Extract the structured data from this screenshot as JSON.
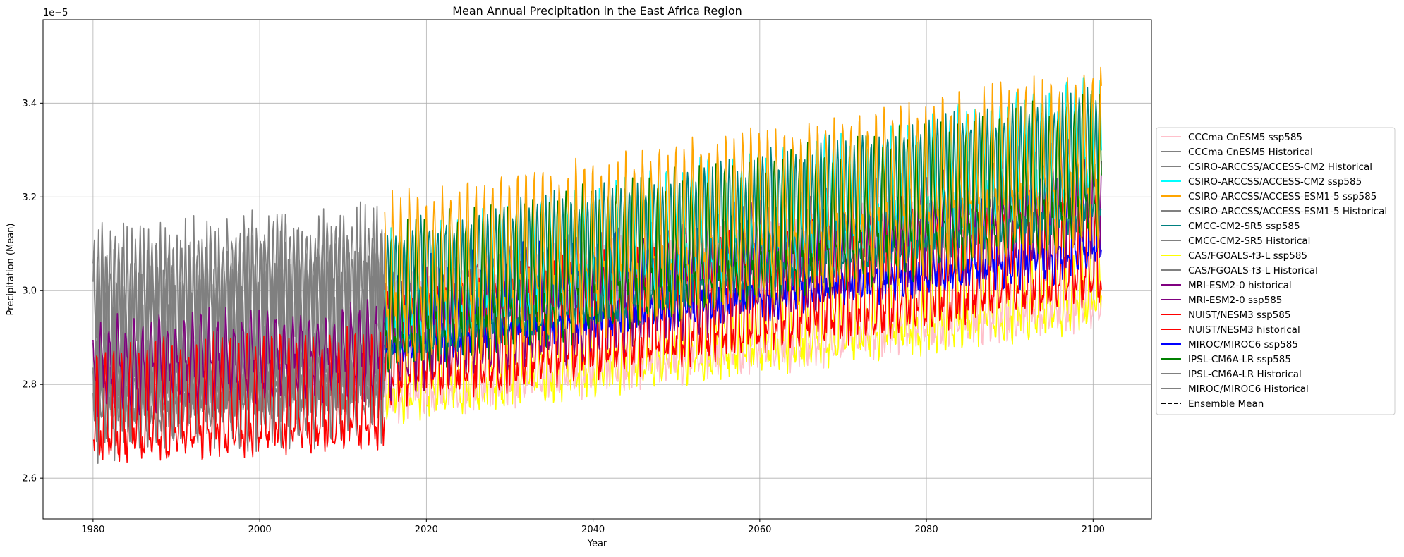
{
  "chart_data": {
    "type": "line",
    "title": "Mean Annual Precipitation in the East Africa Region",
    "xlabel": "Year",
    "ylabel": "Precipitation (Mean)",
    "y_offset_text": "1e−5",
    "xlim": [
      1974,
      2107
    ],
    "ylim": [
      2.513,
      3.578
    ],
    "x_ticks": [
      1980,
      2000,
      2020,
      2040,
      2060,
      2080,
      2100
    ],
    "x_tick_labels": [
      "1980",
      "2000",
      "2020",
      "2040",
      "2060",
      "2080",
      "2100"
    ],
    "y_ticks": [
      2.6,
      2.8,
      3.0,
      3.2,
      3.4
    ],
    "y_tick_labels": [
      "2.6",
      "2.8",
      "3.0",
      "3.2",
      "3.4"
    ],
    "grid": true,
    "legend_position": "right",
    "series": [
      {
        "name": "CCCma CnESM5 ssp585",
        "color": "#ffc0cb",
        "period": "future",
        "base_start": 2.84,
        "base_end": 3.04,
        "amp": 0.13,
        "noise": 0.03,
        "seed": 11
      },
      {
        "name": "CCCma CnESM5 Historical",
        "color": "#808080",
        "period": "hist",
        "base_start": 2.86,
        "base_end": 2.9,
        "amp": 0.14,
        "noise": 0.04,
        "seed": 12
      },
      {
        "name": "CSIRO-ARCCSS/ACCESS-CM2 Historical",
        "color": "#808080",
        "period": "hist",
        "base_start": 2.88,
        "base_end": 2.92,
        "amp": 0.16,
        "noise": 0.04,
        "seed": 13
      },
      {
        "name": "CSIRO-ARCCSS/ACCESS-CM2 ssp585",
        "color": "#00ffff",
        "period": "future",
        "base_start": 2.98,
        "base_end": 3.3,
        "amp": 0.1,
        "noise": 0.03,
        "seed": 14
      },
      {
        "name": "CSIRO-ARCCSS/ACCESS-ESM1-5 ssp585",
        "color": "#ffa500",
        "period": "future",
        "base_start": 3.0,
        "base_end": 3.27,
        "amp": 0.14,
        "noise": 0.03,
        "seed": 15
      },
      {
        "name": "CSIRO-ARCCSS/ACCESS-ESM1-5 Historical",
        "color": "#808080",
        "period": "hist",
        "base_start": 2.9,
        "base_end": 2.95,
        "amp": 0.16,
        "noise": 0.04,
        "seed": 16
      },
      {
        "name": "CMCC-CM2-SR5 ssp585",
        "color": "#008080",
        "period": "future",
        "base_start": 2.95,
        "base_end": 3.24,
        "amp": 0.12,
        "noise": 0.03,
        "seed": 17
      },
      {
        "name": "CMCC-CM2-SR5 Historical",
        "color": "#808080",
        "period": "hist",
        "base_start": 2.82,
        "base_end": 2.86,
        "amp": 0.12,
        "noise": 0.04,
        "seed": 18
      },
      {
        "name": "CAS/FGOALS-f3-L ssp585",
        "color": "#ffff00",
        "period": "future",
        "base_start": 2.8,
        "base_end": 3.0,
        "amp": 0.07,
        "noise": 0.03,
        "seed": 19
      },
      {
        "name": "CAS/FGOALS-f3-L Historical",
        "color": "#808080",
        "period": "hist",
        "base_start": 2.84,
        "base_end": 2.88,
        "amp": 0.13,
        "noise": 0.04,
        "seed": 20
      },
      {
        "name": "MRI-ESM2-0 historical",
        "color": "#800080",
        "period": "hist",
        "base_start": 2.83,
        "base_end": 2.86,
        "amp": 0.07,
        "noise": 0.03,
        "seed": 21
      },
      {
        "name": "MRI-ESM2-0 ssp585",
        "color": "#800080",
        "period": "future",
        "base_start": 2.9,
        "base_end": 3.2,
        "amp": 0.09,
        "noise": 0.03,
        "seed": 22
      },
      {
        "name": "NUIST/NESM3 ssp585",
        "color": "#ff0000",
        "period": "future",
        "base_start": 2.85,
        "base_end": 3.07,
        "amp": 0.1,
        "noise": 0.03,
        "seed": 23
      },
      {
        "name": "NUIST/NESM3 historical",
        "color": "#ff0000",
        "period": "hist",
        "base_start": 2.73,
        "base_end": 2.76,
        "amp": 0.1,
        "noise": 0.03,
        "seed": 24
      },
      {
        "name": "MIROC/MIROC6 ssp585",
        "color": "#0000ff",
        "period": "future",
        "base_start": 2.93,
        "base_end": 3.12,
        "amp": 0.08,
        "noise": 0.03,
        "seed": 25
      },
      {
        "name": "IPSL-CM6A-LR ssp585",
        "color": "#008000",
        "period": "future",
        "base_start": 2.96,
        "base_end": 3.24,
        "amp": 0.12,
        "noise": 0.03,
        "seed": 26
      },
      {
        "name": "IPSL-CM6A-LR Historical",
        "color": "#808080",
        "period": "hist",
        "base_start": 2.8,
        "base_end": 2.84,
        "amp": 0.12,
        "noise": 0.04,
        "seed": 27
      },
      {
        "name": "MIROC/MIROC6 Historical",
        "color": "#808080",
        "period": "hist",
        "base_start": 2.87,
        "base_end": 2.9,
        "amp": 0.15,
        "noise": 0.04,
        "seed": 28
      },
      {
        "name": "Ensemble Mean",
        "color": "#000000",
        "period": "none",
        "dashed": true
      }
    ]
  }
}
